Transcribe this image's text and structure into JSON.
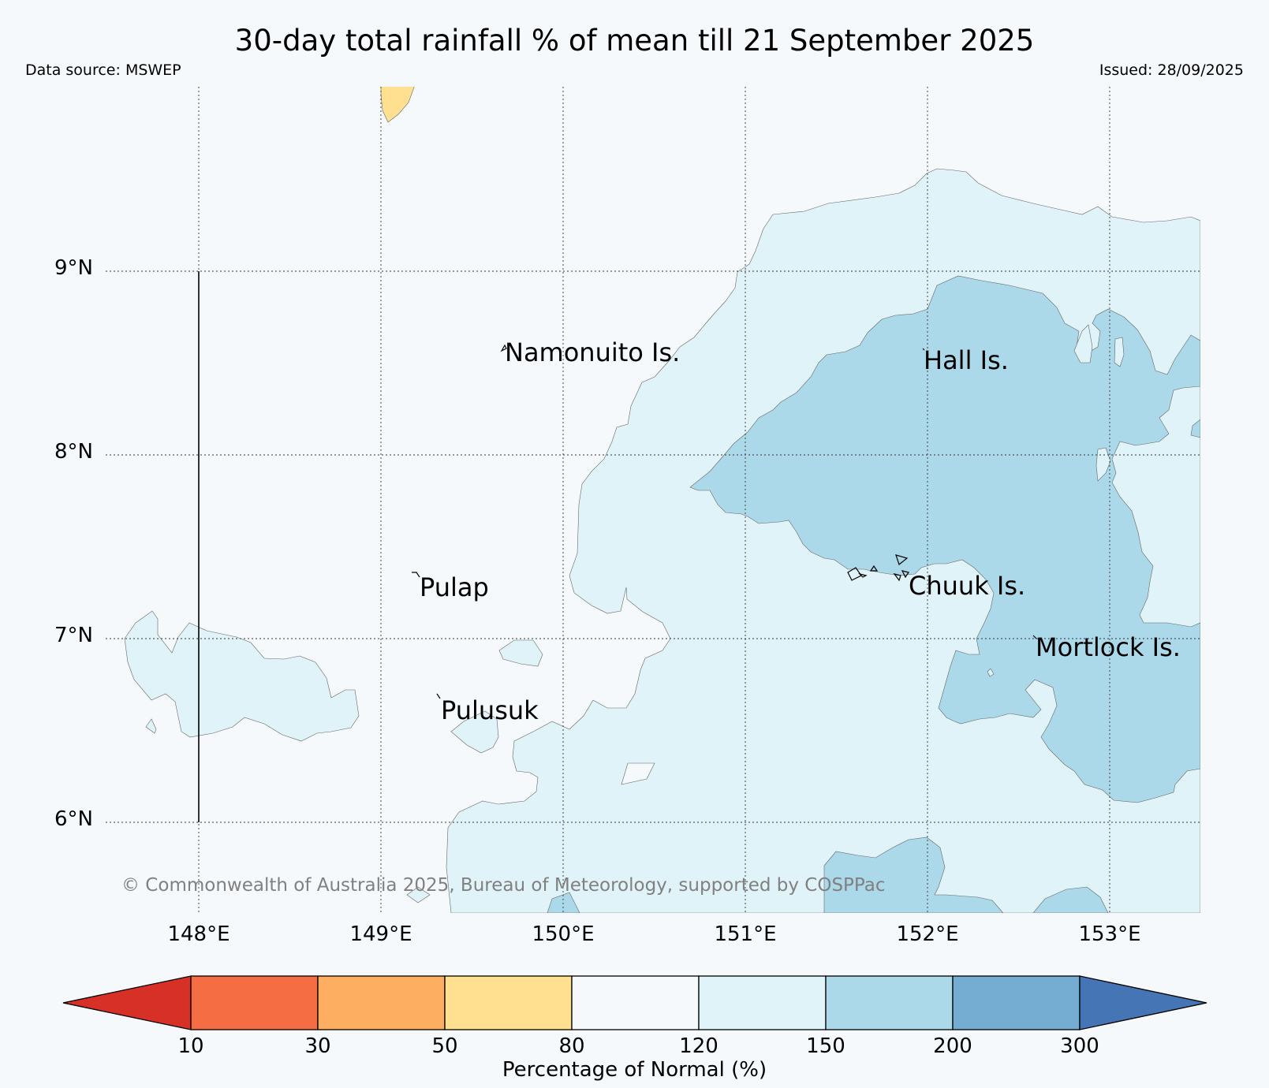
{
  "header": {
    "title": "30-day total rainfall % of mean till 21 September 2025",
    "data_source": "Data source: MSWEP",
    "issued": "Issued: 28/09/2025"
  },
  "map": {
    "background_color": "#f5f9fc",
    "lat_labels": [
      "9°N",
      "8°N",
      "7°N",
      "6°N"
    ],
    "lon_labels": [
      "148°E",
      "149°E",
      "150°E",
      "151°E",
      "152°E",
      "153°E"
    ],
    "extent": {
      "lon": [
        147.5,
        153.5
      ],
      "lat": [
        5.5,
        10.0
      ]
    },
    "gridlines": true,
    "places": [
      {
        "name": "Namonuito Is.",
        "lon": 149.68,
        "lat": 8.57
      },
      {
        "name": "Hall Is.",
        "lon": 151.98,
        "lat": 8.62
      },
      {
        "name": "Pulap",
        "lon": 149.2,
        "lat": 7.35
      },
      {
        "name": "Chuuk Is.",
        "lon": 151.85,
        "lat": 7.35
      },
      {
        "name": "Pulusuk",
        "lon": 149.32,
        "lat": 6.69
      },
      {
        "name": "Mortlock Is.",
        "lon": 152.6,
        "lat": 7.0
      }
    ],
    "copyright": "© Commonwealth of Australia 2025, Bureau of Meteorology, supported by COSPPac"
  },
  "colorbar": {
    "title": "Percentage of Normal (%)",
    "ticks": [
      "10",
      "30",
      "50",
      "80",
      "120",
      "150",
      "200",
      "300"
    ],
    "bins": [
      {
        "range": "<10",
        "color": "#d73027"
      },
      {
        "range": "10-30",
        "color": "#f46d43"
      },
      {
        "range": "30-50",
        "color": "#fdae61"
      },
      {
        "range": "50-80",
        "color": "#fee090"
      },
      {
        "range": "80-120",
        "color": "#f5f9fc"
      },
      {
        "range": "120-150",
        "color": "#e0f3f8"
      },
      {
        "range": "150-200",
        "color": "#abd9e9"
      },
      {
        "range": "200-300",
        "color": "#74add1"
      },
      {
        "range": ">300",
        "color": "#4575b4"
      }
    ]
  }
}
